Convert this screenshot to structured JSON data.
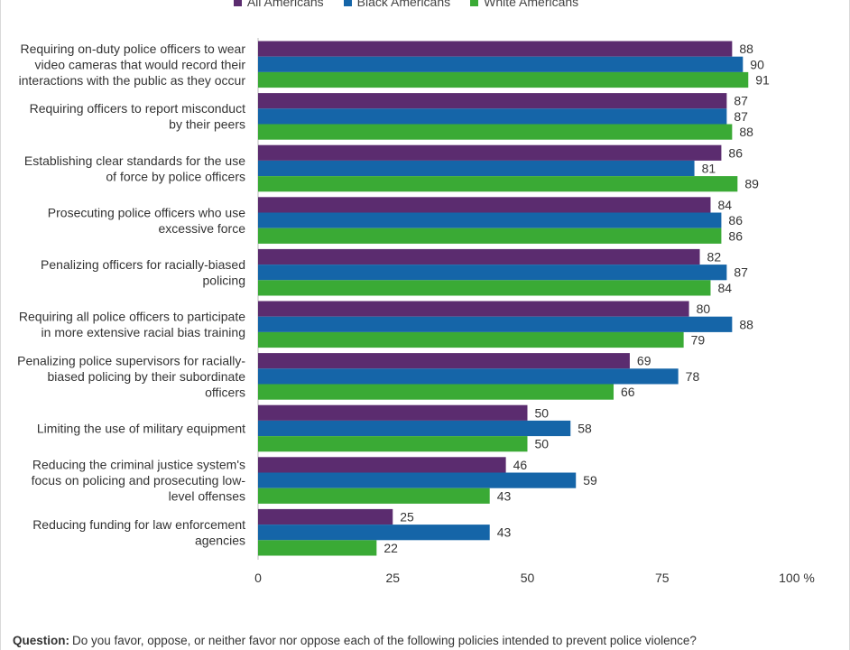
{
  "chart_data": {
    "type": "bar",
    "orientation": "horizontal",
    "categories": [
      "Requiring on-duty police officers to wear video cameras that would record their interactions with the public as they occur",
      "Requiring officers to report misconduct by their peers",
      "Establishing clear standards for the use of force by police officers",
      "Prosecuting police officers who use excessive force",
      "Penalizing officers for racially-biased policing",
      "Requiring all police officers to participate in more extensive racial bias training",
      "Penalizing police supervisors for racially-biased policing by their subordinate officers",
      "Limiting the use of military equipment",
      "Reducing the criminal justice system's focus on policing and prosecuting low-level offenses",
      "Reducing funding for law enforcement agencies"
    ],
    "category_lines": [
      [
        "Requiring on-duty police officers to wear",
        "video cameras that would record their",
        "interactions with the public as they occur"
      ],
      [
        "Requiring officers to report misconduct",
        "by their peers"
      ],
      [
        "Establishing clear standards for the use",
        "of force by police officers"
      ],
      [
        "Prosecuting police officers who use",
        "excessive force"
      ],
      [
        "Penalizing officers for racially-biased",
        "policing"
      ],
      [
        "Requiring all police officers to participate",
        "in more extensive racial bias training"
      ],
      [
        "Penalizing police supervisors for racially-",
        "biased policing by their subordinate",
        "officers"
      ],
      [
        "Limiting the use of military equipment"
      ],
      [
        "Reducing the criminal justice system's",
        "focus on policing and prosecuting low-",
        "level offenses"
      ],
      [
        "Reducing funding for law enforcement",
        "agencies"
      ]
    ],
    "series": [
      {
        "name": "All Americans",
        "color": "#5b2c6f",
        "values": [
          88,
          87,
          86,
          84,
          82,
          80,
          69,
          50,
          46,
          25
        ]
      },
      {
        "name": "Black Americans",
        "color": "#1565a8",
        "values": [
          90,
          87,
          81,
          86,
          87,
          88,
          78,
          58,
          59,
          43
        ]
      },
      {
        "name": "White Americans",
        "color": "#3aaa35",
        "values": [
          91,
          88,
          89,
          86,
          84,
          79,
          66,
          50,
          43,
          22
        ]
      }
    ],
    "xlim": [
      0,
      100
    ],
    "xticks": [
      "0",
      "25",
      "50",
      "75",
      "100 %"
    ],
    "xtick_values": [
      0,
      25,
      50,
      75,
      100
    ],
    "legend_position": "top",
    "grid": false
  },
  "footnote": {
    "label": "Question:",
    "text": "Do you favor, oppose, or neither favor nor oppose each of the following policies  intended to prevent police violence?"
  }
}
